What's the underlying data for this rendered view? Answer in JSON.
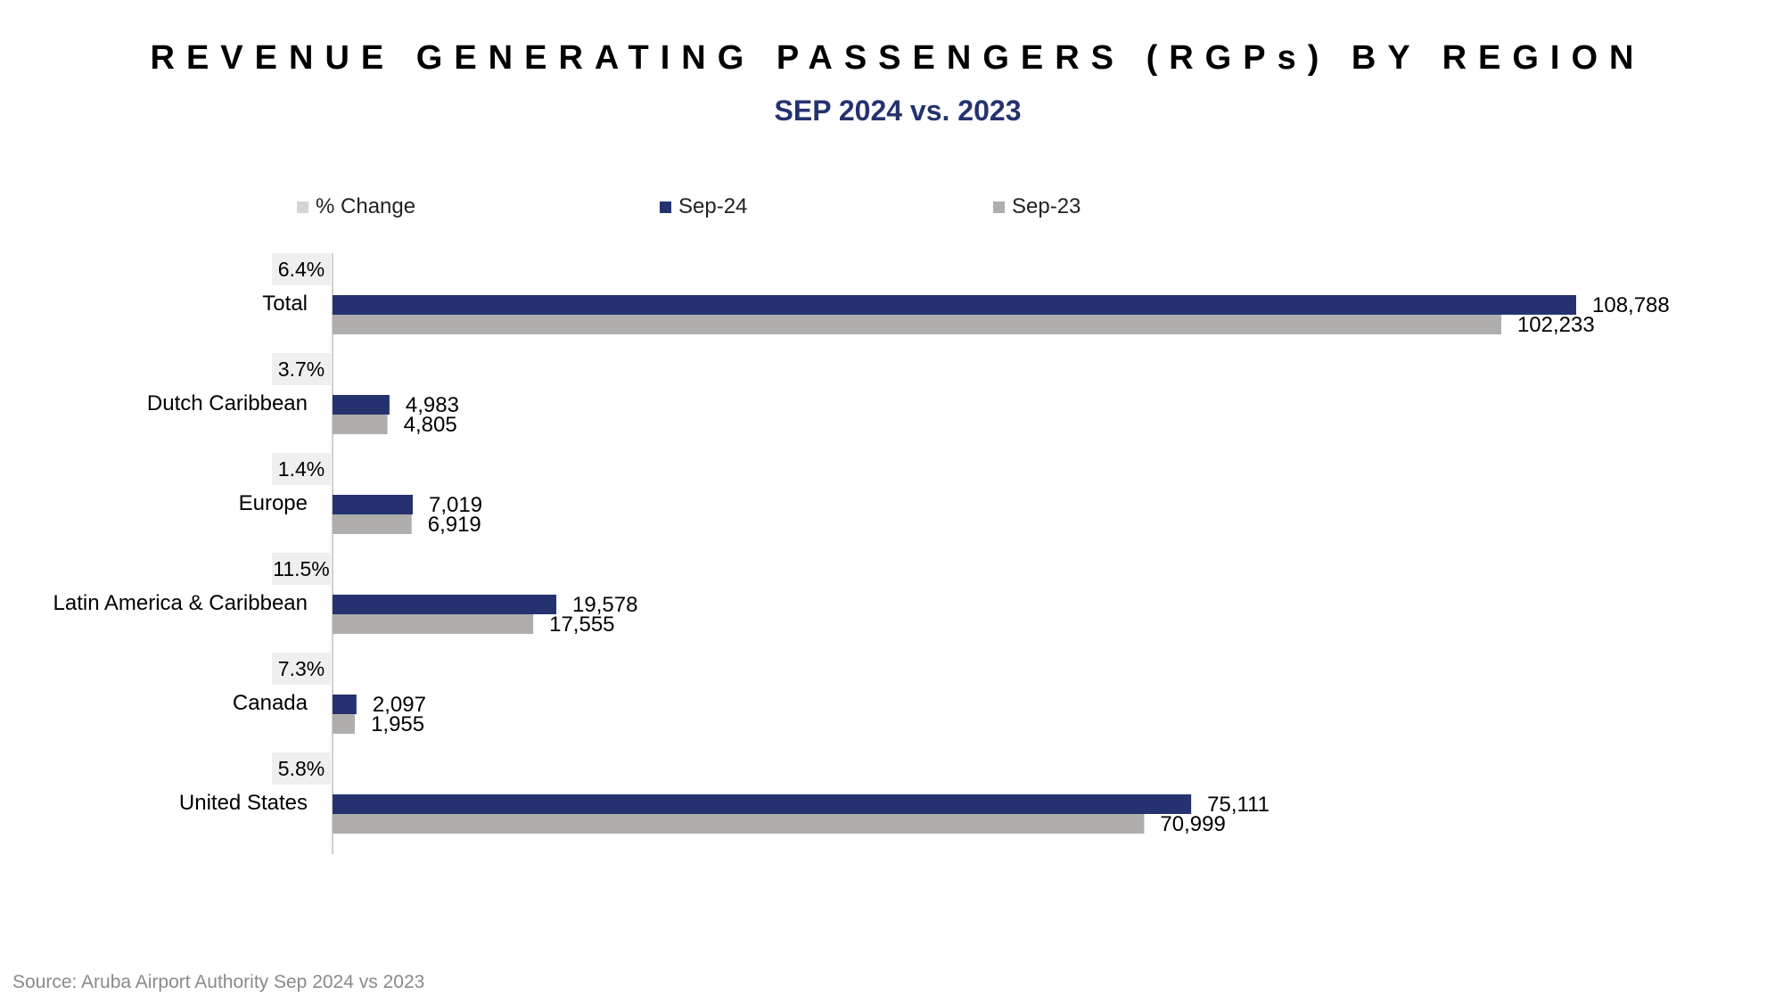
{
  "title": "REVENUE GENERATING PASSENGERS (RGPs) BY REGION",
  "subtitle": "SEP 2024 vs. 2023",
  "source": "Source: Aruba Airport Authority Sep 2024 vs 2023",
  "colors": {
    "sep24": "#24336f",
    "sep23": "#b0adad",
    "pct_change": "#d4d4d4",
    "pct_box_bg": "#efefef"
  },
  "chart_data": {
    "type": "bar",
    "orientation": "horizontal",
    "title": "REVENUE GENERATING PASSENGERS (RGPs) BY REGION",
    "subtitle": "SEP 2024 vs. 2023",
    "legend": [
      "% Change",
      "Sep-24",
      "Sep-23"
    ],
    "legend_position": "top",
    "categories": [
      "Total",
      "Dutch Caribbean",
      "Europe",
      "Latin America & Caribbean",
      "Canada",
      "United States"
    ],
    "series": [
      {
        "name": "Sep-24",
        "values": [
          108788,
          4983,
          7019,
          19578,
          2097,
          75111
        ],
        "labels": [
          "108,788",
          "4,983",
          "7,019",
          "19,578",
          "2,097",
          "75,111"
        ]
      },
      {
        "name": "Sep-23",
        "values": [
          102233,
          4805,
          6919,
          17555,
          1955,
          70999
        ],
        "labels": [
          "102,233",
          "4,805",
          "6,919",
          "17,555",
          "1,955",
          "70,999"
        ]
      }
    ],
    "pct_change": {
      "name": "% Change",
      "labels": [
        "6.4%",
        "3.7%",
        "1.4%",
        "11.5%",
        "7.3%",
        "5.8%"
      ]
    },
    "xlim": [
      0,
      108788
    ],
    "grid": false
  }
}
